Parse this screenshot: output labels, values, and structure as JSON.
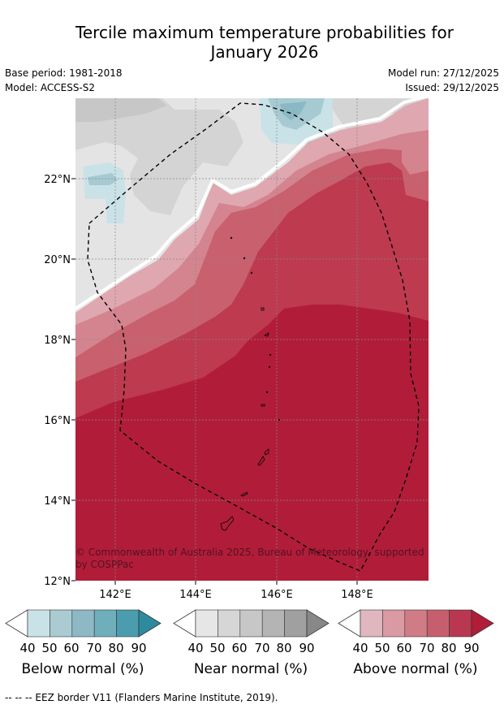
{
  "title_line1": "Tercile maximum temperature probabilities for",
  "title_line2": "January 2026",
  "meta": {
    "base_period": "Base period: 1981-2018",
    "model": "Model: ACCESS-S2",
    "model_run": "Model run: 27/12/2025",
    "issued": "Issued: 29/12/2025"
  },
  "map": {
    "lat_labels": [
      "22°N",
      "20°N",
      "18°N",
      "16°N",
      "14°N",
      "12°N"
    ],
    "lon_labels": [
      "142°E",
      "144°E",
      "146°E",
      "148°E"
    ],
    "copyright_line1": "© Commonwealth of Australia 2025, Bureau of Meteorology, supported",
    "copyright_line2": "by COSPPac",
    "colors": {
      "above_90": "#b11d39",
      "above_80": "#bd3a4f",
      "above_70": "#c9606d",
      "above_60": "#d4848f",
      "above_50": "#dfa7b0",
      "near_40": "#e4e4e4",
      "near_50": "#d4d4d4",
      "near_60": "#c7c7c7",
      "below_50": "#a7cad2",
      "below_60": "#8ab8c4",
      "below_40": "#c9e2e7"
    }
  },
  "colorbars": [
    {
      "label": "Below normal (%)",
      "ticks": [
        "40",
        "50",
        "60",
        "70",
        "80",
        "90"
      ],
      "colors": [
        "#c9e2e7",
        "#a9cbd1",
        "#8eb8c4",
        "#6faebb",
        "#4b9cae",
        "#2e8b9e"
      ]
    },
    {
      "label": "Near normal (%)",
      "ticks": [
        "40",
        "50",
        "60",
        "70",
        "80",
        "90"
      ],
      "colors": [
        "#e6e6e6",
        "#d6d6d6",
        "#c7c7c7",
        "#b4b4b4",
        "#a0a0a0",
        "#888888"
      ]
    },
    {
      "label": "Above normal (%)",
      "ticks": [
        "40",
        "50",
        "60",
        "70",
        "80",
        "90"
      ],
      "colors": [
        "#e0b6bf",
        "#d99aa3",
        "#d07c86",
        "#c65f6d",
        "#b93750",
        "#b11d39"
      ]
    }
  ],
  "footer": "--  --  -- EEZ border V11 (Flanders Marine Institute, 2019)."
}
